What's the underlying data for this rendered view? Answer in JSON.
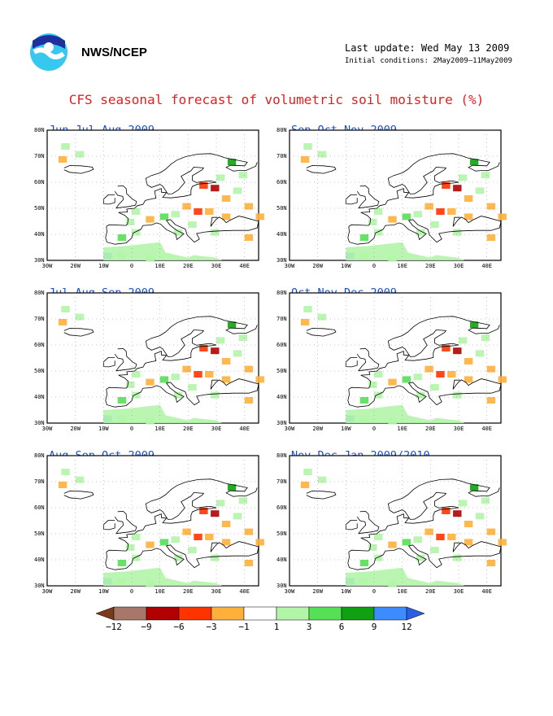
{
  "header": {
    "org": "NWS/NCEP",
    "last_update": "Last update: Wed May 13 2009",
    "initial_conditions": "Initial conditions: 2May2009–11May2009",
    "logo_icon": "noaa-logo-icon"
  },
  "title": "CFS seasonal forecast of volumetric soil moisture (%)",
  "axes": {
    "lat_labels": [
      "80N",
      "70N",
      "60N",
      "50N",
      "40N",
      "30N"
    ],
    "lon_labels": [
      "30W",
      "20W",
      "10W",
      "0",
      "10E",
      "20E",
      "30E",
      "40E"
    ]
  },
  "panels": [
    {
      "title": "Jun-Jul-Aug 2009"
    },
    {
      "title": "Sep-Oct-Nov 2009"
    },
    {
      "title": "Jul-Aug-Sep 2009"
    },
    {
      "title": "Oct-Nov-Dec 2009"
    },
    {
      "title": "Aug-Sep-Oct 2009"
    },
    {
      "title": "Nov-Dec-Jan 2009/2010"
    }
  ],
  "colorbar": {
    "labels": [
      "−12",
      "−9",
      "−6",
      "−3",
      "−1",
      "1",
      "3",
      "6",
      "9",
      "12"
    ],
    "colors": [
      "#7a3a1a",
      "#a9776a",
      "#b00000",
      "#ff3300",
      "#ffb03a",
      "#ffffff",
      "#b3f5a8",
      "#55e055",
      "#11a011",
      "#3c8cff",
      "#2b5fe0"
    ]
  }
}
